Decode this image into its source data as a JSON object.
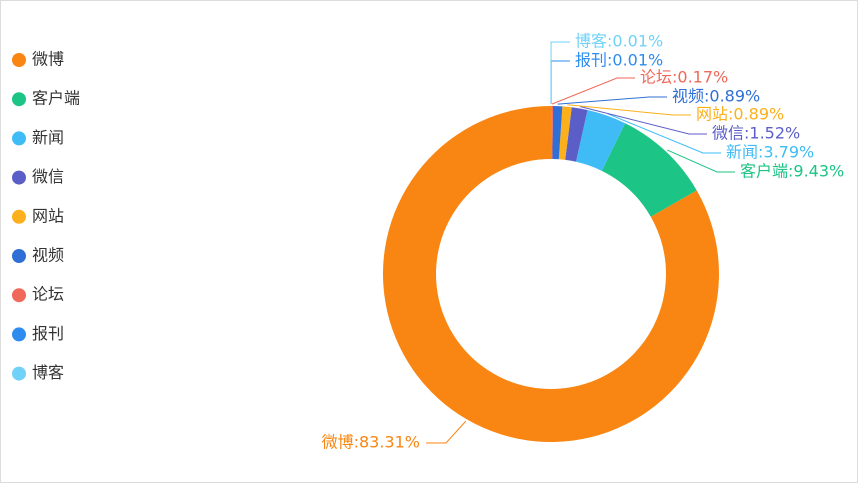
{
  "chart_data": {
    "type": "donut",
    "categories": [
      "微博",
      "客户端",
      "新闻",
      "微信",
      "网站",
      "视频",
      "论坛",
      "报刊",
      "博客"
    ],
    "values": [
      83.31,
      9.43,
      3.79,
      1.52,
      0.89,
      0.89,
      0.17,
      0.01,
      0.01
    ],
    "value_labels": [
      "微博:83.31%",
      "客户端:9.43%",
      "新闻:3.79%",
      "微信:1.52%",
      "网站:0.89%",
      "视频:0.89%",
      "论坛:0.17%",
      "报刊:0.01%",
      "博客:0.01%"
    ],
    "colors": [
      "#f98612",
      "#1cc486",
      "#3fbcf6",
      "#5c5ec8",
      "#fbb01c",
      "#2f6fd6",
      "#f0685a",
      "#2e8cef",
      "#70d2f8"
    ],
    "legend": "left"
  }
}
